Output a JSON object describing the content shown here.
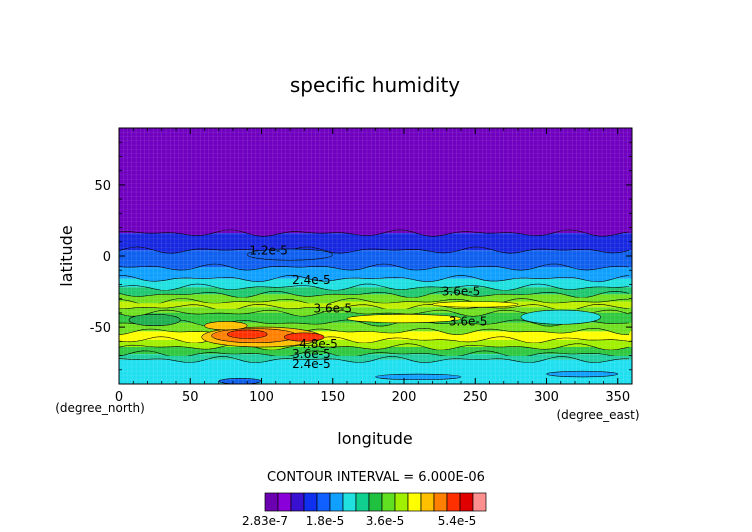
{
  "chart_data": {
    "type": "heatmap",
    "title": "specific humidity",
    "xlabel": "longitude",
    "ylabel": "latitude",
    "x_unit": "(degree_east)",
    "y_unit": "(degree_north)",
    "xlim": [
      0,
      360
    ],
    "ylim": [
      -90,
      90
    ],
    "x_ticks": [
      0,
      50,
      100,
      150,
      200,
      250,
      300,
      350
    ],
    "y_ticks": [
      -50,
      0,
      50
    ],
    "contour_interval_text": "CONTOUR INTERVAL = 6.000E-06",
    "contour_labels": [
      {
        "text": "1.2e-5",
        "x": 105,
        "y": 4
      },
      {
        "text": "2.4e-5",
        "x": 135,
        "y": -17
      },
      {
        "text": "3.6e-5",
        "x": 240,
        "y": -25
      },
      {
        "text": "3.6e-5",
        "x": 150,
        "y": -37
      },
      {
        "text": "3.6e-5",
        "x": 245,
        "y": -46
      },
      {
        "text": "4.8e-5",
        "x": 140,
        "y": -62
      },
      {
        "text": "3.6e-5",
        "x": 135,
        "y": -69
      },
      {
        "text": "2.4e-5",
        "x": 135,
        "y": -76
      }
    ],
    "colorbar": {
      "levels": [
        "2.83e-7",
        "1.8e-5",
        "3.6e-5",
        "5.4e-5"
      ],
      "colors": [
        "#6a00b0",
        "#8a00d8",
        "#3a10d0",
        "#1030f0",
        "#1060ff",
        "#10a0ff",
        "#20e0e0",
        "#10d090",
        "#20c040",
        "#60e020",
        "#a0f000",
        "#ffff00",
        "#ffc000",
        "#ff8000",
        "#ff3000",
        "#e00000",
        "#ff9090"
      ]
    },
    "latitude_bands": [
      {
        "from": 90,
        "to": 16,
        "color": "#7000c0"
      },
      {
        "from": 16,
        "to": 4,
        "color": "#1828e0"
      },
      {
        "from": 4,
        "to": -8,
        "color": "#1060f0"
      },
      {
        "from": -8,
        "to": -16,
        "color": "#10a0ff"
      },
      {
        "from": -16,
        "to": -22,
        "color": "#20e0e0"
      },
      {
        "from": -22,
        "to": -27,
        "color": "#20c870"
      },
      {
        "from": -27,
        "to": -32,
        "color": "#70e020"
      },
      {
        "from": -32,
        "to": -36,
        "color": "#c0f000"
      },
      {
        "from": -36,
        "to": -40,
        "color": "#70e020"
      },
      {
        "from": -40,
        "to": -47,
        "color": "#30c840"
      },
      {
        "from": -47,
        "to": -53,
        "color": "#70e020"
      },
      {
        "from": -53,
        "to": -59,
        "color": "#ffff00"
      },
      {
        "from": -59,
        "to": -64,
        "color": "#a0f000"
      },
      {
        "from": -64,
        "to": -69,
        "color": "#30c840"
      },
      {
        "from": -69,
        "to": -73,
        "color": "#20d0a0"
      },
      {
        "from": -73,
        "to": -90,
        "color": "#20e0f0"
      }
    ],
    "blobs": [
      {
        "x": 100,
        "y": -57,
        "rx": 42,
        "ry": 7,
        "color": "#ffc000"
      },
      {
        "x": 95,
        "y": -56,
        "rx": 30,
        "ry": 5,
        "color": "#ff8000"
      },
      {
        "x": 90,
        "y": -55,
        "rx": 14,
        "ry": 3,
        "color": "#ff3000"
      },
      {
        "x": 130,
        "y": -57,
        "rx": 14,
        "ry": 3,
        "color": "#ff3000"
      },
      {
        "x": 75,
        "y": -49,
        "rx": 15,
        "ry": 3,
        "color": "#ffc000"
      },
      {
        "x": 200,
        "y": -44,
        "rx": 40,
        "ry": 3,
        "color": "#ffff00"
      },
      {
        "x": 310,
        "y": -43,
        "rx": 28,
        "ry": 5,
        "color": "#20e0e0"
      },
      {
        "x": 25,
        "y": -45,
        "rx": 18,
        "ry": 4,
        "color": "#20b050"
      },
      {
        "x": 250,
        "y": -34,
        "rx": 30,
        "ry": 2,
        "color": "#ffff00"
      },
      {
        "x": 210,
        "y": -85,
        "rx": 30,
        "ry": 2,
        "color": "#10a0ff"
      },
      {
        "x": 325,
        "y": -83,
        "rx": 25,
        "ry": 2,
        "color": "#10a0ff"
      },
      {
        "x": 85,
        "y": -88,
        "rx": 15,
        "ry": 2,
        "color": "#1060f0"
      },
      {
        "x": 120,
        "y": 1,
        "rx": 30,
        "ry": 4,
        "color": "#1060f0"
      }
    ]
  }
}
